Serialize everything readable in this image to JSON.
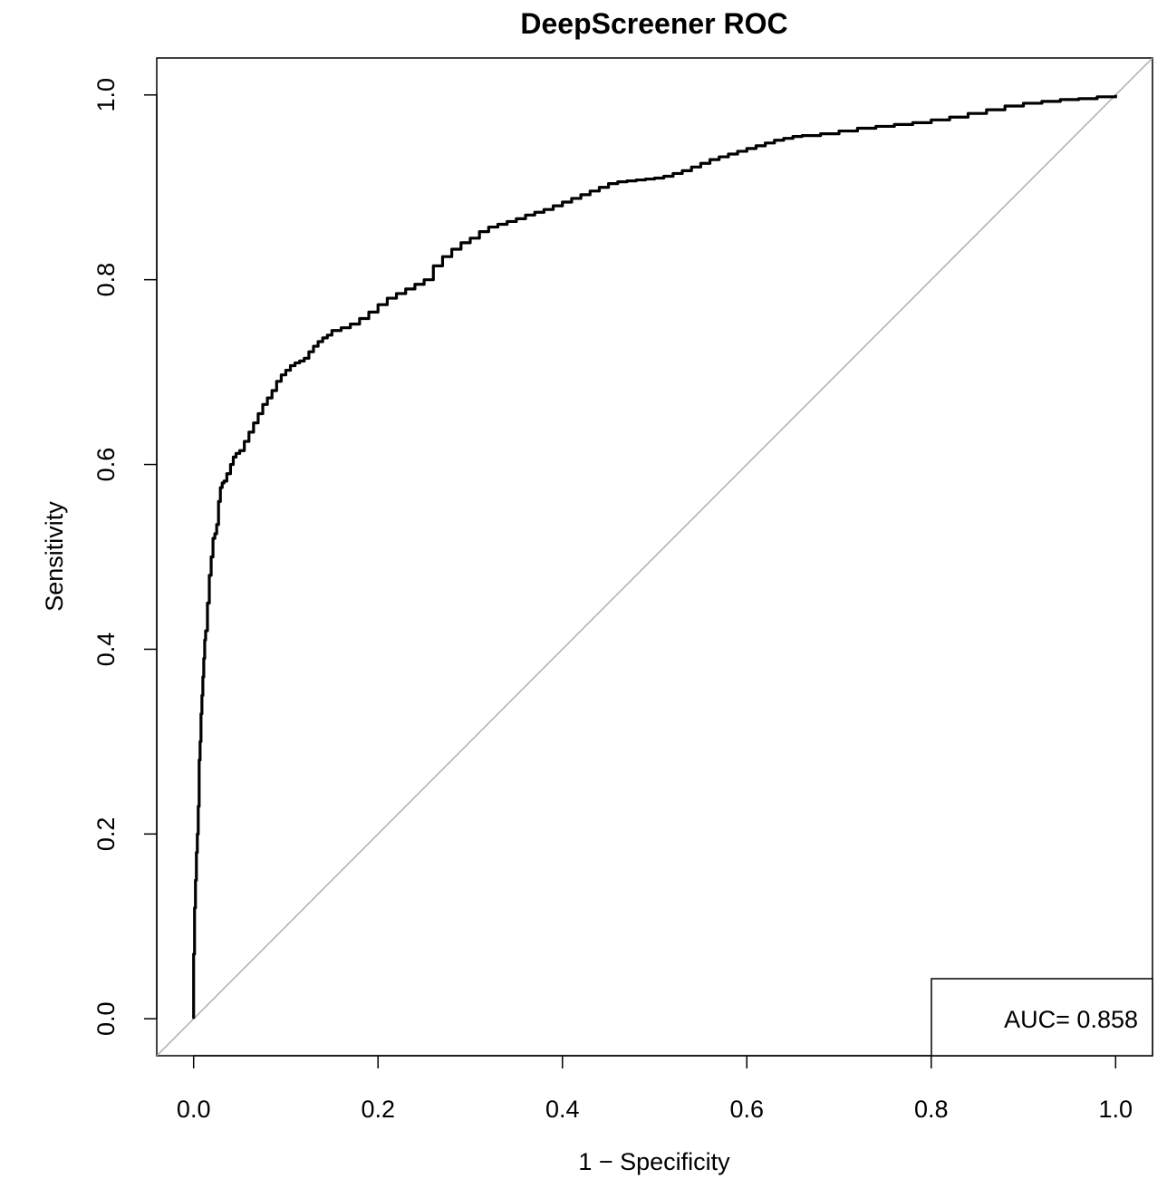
{
  "chart_data": {
    "type": "line",
    "title": "DeepScreener ROC",
    "xlabel": "1 − Specificity",
    "ylabel": "Sensitivity",
    "xlim": [
      -0.04,
      1.04
    ],
    "ylim": [
      -0.04,
      1.04
    ],
    "x_ticks": [
      0.0,
      0.2,
      0.4,
      0.6,
      0.8,
      1.0
    ],
    "y_ticks": [
      0.0,
      0.2,
      0.4,
      0.6,
      0.8,
      1.0
    ],
    "x_tick_labels": [
      "0.0",
      "0.2",
      "0.4",
      "0.6",
      "0.8",
      "1.0"
    ],
    "y_tick_labels": [
      "0.0",
      "0.2",
      "0.4",
      "0.6",
      "0.8",
      "1.0"
    ],
    "grid": false,
    "legend_position": "bottom-right",
    "legend_text": "AUC= 0.858",
    "reference_line": {
      "x": [
        -0.04,
        1.04
      ],
      "y": [
        -0.04,
        1.04
      ],
      "color": "#b3b3b3"
    },
    "series": [
      {
        "color": "#000000",
        "x": [
          0.0,
          0.0,
          0.001,
          0.002,
          0.003,
          0.004,
          0.005,
          0.006,
          0.007,
          0.008,
          0.009,
          0.01,
          0.011,
          0.012,
          0.013,
          0.015,
          0.017,
          0.019,
          0.021,
          0.023,
          0.025,
          0.027,
          0.029,
          0.031,
          0.033,
          0.036,
          0.04,
          0.043,
          0.046,
          0.05,
          0.055,
          0.06,
          0.065,
          0.07,
          0.075,
          0.08,
          0.085,
          0.09,
          0.095,
          0.1,
          0.105,
          0.11,
          0.115,
          0.12,
          0.125,
          0.13,
          0.135,
          0.14,
          0.145,
          0.15,
          0.16,
          0.17,
          0.18,
          0.19,
          0.2,
          0.21,
          0.22,
          0.23,
          0.24,
          0.25,
          0.26,
          0.27,
          0.28,
          0.29,
          0.3,
          0.31,
          0.32,
          0.33,
          0.34,
          0.35,
          0.36,
          0.37,
          0.38,
          0.39,
          0.4,
          0.41,
          0.42,
          0.43,
          0.44,
          0.45,
          0.46,
          0.47,
          0.48,
          0.49,
          0.5,
          0.51,
          0.52,
          0.53,
          0.54,
          0.55,
          0.56,
          0.57,
          0.58,
          0.59,
          0.6,
          0.61,
          0.62,
          0.63,
          0.64,
          0.65,
          0.66,
          0.68,
          0.7,
          0.72,
          0.74,
          0.76,
          0.78,
          0.8,
          0.82,
          0.84,
          0.86,
          0.88,
          0.9,
          0.92,
          0.94,
          0.96,
          0.98,
          1.0
        ],
        "y": [
          0.0,
          0.07,
          0.12,
          0.15,
          0.18,
          0.2,
          0.23,
          0.28,
          0.3,
          0.33,
          0.35,
          0.37,
          0.39,
          0.41,
          0.42,
          0.45,
          0.48,
          0.5,
          0.52,
          0.525,
          0.535,
          0.56,
          0.575,
          0.58,
          0.582,
          0.59,
          0.6,
          0.608,
          0.612,
          0.615,
          0.625,
          0.635,
          0.645,
          0.655,
          0.665,
          0.672,
          0.68,
          0.69,
          0.697,
          0.702,
          0.707,
          0.71,
          0.712,
          0.715,
          0.722,
          0.728,
          0.733,
          0.737,
          0.74,
          0.745,
          0.748,
          0.752,
          0.758,
          0.765,
          0.773,
          0.78,
          0.785,
          0.79,
          0.795,
          0.8,
          0.815,
          0.825,
          0.833,
          0.84,
          0.845,
          0.852,
          0.857,
          0.86,
          0.863,
          0.866,
          0.87,
          0.873,
          0.876,
          0.88,
          0.884,
          0.888,
          0.892,
          0.896,
          0.9,
          0.904,
          0.906,
          0.907,
          0.908,
          0.909,
          0.91,
          0.912,
          0.915,
          0.918,
          0.922,
          0.926,
          0.93,
          0.933,
          0.936,
          0.939,
          0.942,
          0.945,
          0.948,
          0.951,
          0.953,
          0.955,
          0.956,
          0.958,
          0.961,
          0.964,
          0.966,
          0.968,
          0.97,
          0.973,
          0.976,
          0.98,
          0.984,
          0.988,
          0.991,
          0.993,
          0.995,
          0.996,
          0.998,
          1.0
        ]
      }
    ]
  }
}
